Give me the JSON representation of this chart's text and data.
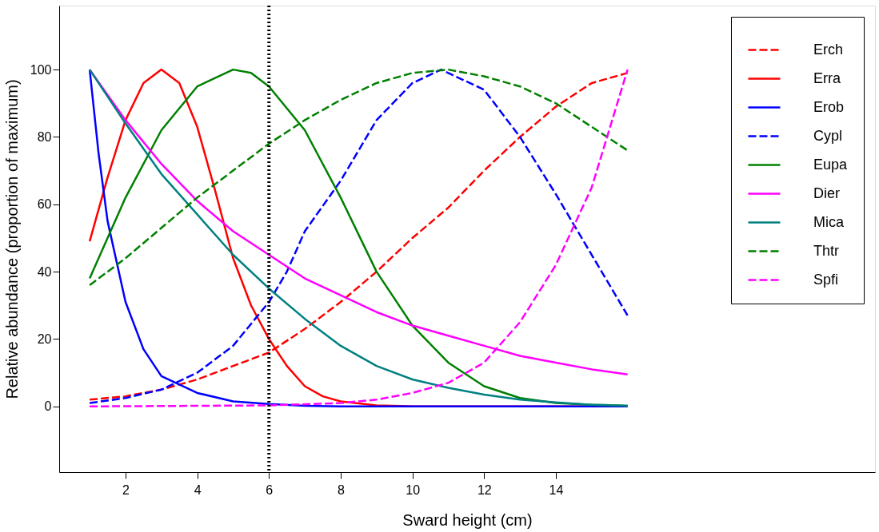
{
  "chart_data": {
    "type": "line",
    "xlabel": "Sward height (cm)",
    "ylabel": "Relative abundance (proportion of maximum)",
    "xlim": [
      0.15,
      22.9
    ],
    "ylim": [
      -19.5,
      119
    ],
    "xticks": [
      2,
      4,
      6,
      8,
      10,
      12,
      14
    ],
    "yticks": [
      0,
      20,
      40,
      60,
      80,
      100
    ],
    "grid": false,
    "legend": "right",
    "marker": "none",
    "ref_lines": [
      {
        "axis": "x",
        "value": 6,
        "line_style": "dotted",
        "color": "#000000"
      }
    ],
    "series": [
      {
        "name": "Erch",
        "color": "#ff0000",
        "line_style": "dashed",
        "x": [
          1,
          2,
          3,
          4,
          5,
          6,
          7,
          8,
          9,
          10,
          11,
          12,
          13,
          14,
          15,
          16
        ],
        "values": [
          2,
          3,
          5,
          8,
          12,
          16,
          23,
          31,
          40,
          50,
          59,
          70,
          80,
          89,
          96,
          99
        ]
      },
      {
        "name": "Erra",
        "color": "#ff0000",
        "line_style": "solid",
        "x": [
          1,
          1.5,
          2,
          2.5,
          3,
          3.5,
          4,
          4.5,
          5,
          5.5,
          6,
          6.5,
          7,
          7.5,
          8,
          9,
          10,
          16
        ],
        "values": [
          49,
          68,
          85,
          96,
          100,
          96,
          83,
          64,
          44,
          30,
          20,
          12,
          6,
          3,
          1.5,
          0.3,
          0,
          0
        ]
      },
      {
        "name": "Erob",
        "color": "#0000ff",
        "line_style": "solid",
        "x": [
          1,
          1.25,
          1.5,
          2,
          2.5,
          3,
          4,
          5,
          6,
          7,
          8,
          16
        ],
        "values": [
          100,
          75,
          55,
          31,
          17,
          9,
          4,
          1.5,
          0.7,
          0.2,
          0,
          0
        ]
      },
      {
        "name": "Cypl",
        "color": "#0000ff",
        "line_style": "dashed",
        "x": [
          1,
          2,
          3,
          4,
          5,
          6,
          6.5,
          7,
          8,
          9,
          10,
          10.8,
          12,
          13,
          14,
          15,
          16
        ],
        "values": [
          1,
          2.5,
          5,
          10,
          18,
          31,
          40,
          52,
          67,
          85,
          96,
          100,
          94,
          80,
          63,
          45,
          27
        ]
      },
      {
        "name": "Eupa",
        "color": "#008000",
        "line_style": "solid",
        "x": [
          1,
          2,
          3,
          4,
          5,
          5.5,
          6,
          7,
          8,
          9,
          10,
          11,
          12,
          13,
          14,
          15,
          16
        ],
        "values": [
          38,
          62,
          82,
          95,
          100,
          99,
          95,
          82,
          62,
          40,
          24,
          13,
          6,
          2.5,
          1,
          0.5,
          0.2
        ]
      },
      {
        "name": "Dier",
        "color": "#ff00ff",
        "line_style": "solid",
        "x": [
          1,
          2,
          3,
          4,
          5,
          6,
          7,
          8,
          9,
          10,
          11,
          12,
          13,
          14,
          15,
          16
        ],
        "values": [
          100,
          85,
          72,
          61,
          52,
          45,
          38,
          33,
          28,
          24,
          21,
          18,
          15,
          13,
          11,
          9.5
        ]
      },
      {
        "name": "Mica",
        "color": "#008080",
        "line_style": "solid",
        "x": [
          1,
          2,
          3,
          4,
          5,
          6,
          7,
          8,
          9,
          10,
          11,
          12,
          13,
          14,
          15,
          16
        ],
        "values": [
          100,
          84,
          69,
          57,
          45,
          35,
          26,
          18,
          12,
          8,
          5.5,
          3.5,
          2,
          1.2,
          0.5,
          0.2
        ]
      },
      {
        "name": "Thtr",
        "color": "#008000",
        "line_style": "dashed",
        "x": [
          1,
          2,
          3,
          4,
          5,
          6,
          7,
          8,
          9,
          10,
          11,
          12,
          13,
          14,
          15,
          16
        ],
        "values": [
          36,
          44,
          53,
          62,
          70,
          78,
          85,
          91,
          96,
          99,
          100,
          98,
          95,
          90,
          83,
          76
        ]
      },
      {
        "name": "Spfi",
        "color": "#ff00ff",
        "line_style": "dashed",
        "x": [
          1,
          6,
          8,
          9,
          10,
          11,
          12,
          13,
          14,
          15,
          16
        ],
        "values": [
          0,
          0.3,
          1,
          2,
          4,
          7,
          13,
          25,
          42,
          65,
          100
        ]
      }
    ]
  }
}
